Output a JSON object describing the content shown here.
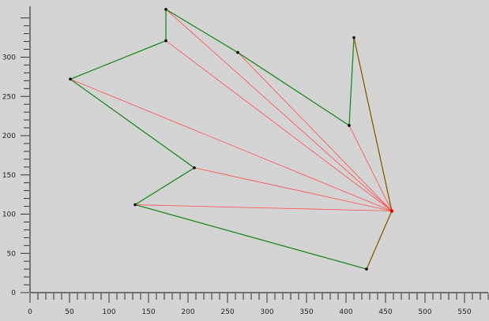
{
  "chart_data": {
    "type": "line",
    "title": "",
    "xlabel": "",
    "ylabel": "",
    "xlim": [
      0,
      580
    ],
    "ylim": [
      0,
      365
    ],
    "x_ticks": [
      0,
      50,
      100,
      150,
      200,
      250,
      300,
      350,
      400,
      450,
      500,
      550
    ],
    "y_ticks": [
      0,
      50,
      100,
      150,
      200,
      250,
      300
    ],
    "x_minor_step": 10,
    "y_minor_step": 10,
    "grid": false,
    "colors": {
      "polygon": "#1f8a1f",
      "fan": "#ff4d4d",
      "hull_right": "#8a5a00",
      "point": "#000000"
    },
    "polygon_vertices": [
      {
        "x": 172,
        "y": 361
      },
      {
        "x": 263,
        "y": 306
      },
      {
        "x": 404,
        "y": 213
      },
      {
        "x": 410,
        "y": 325
      },
      {
        "x": 458,
        "y": 104
      },
      {
        "x": 426,
        "y": 30
      },
      {
        "x": 133,
        "y": 112
      },
      {
        "x": 208,
        "y": 159
      },
      {
        "x": 51,
        "y": 272
      },
      {
        "x": 172,
        "y": 321
      }
    ],
    "green_edges": [
      [
        0,
        1
      ],
      [
        1,
        2
      ],
      [
        2,
        3
      ],
      [
        5,
        6
      ],
      [
        6,
        7
      ],
      [
        7,
        8
      ],
      [
        8,
        9
      ],
      [
        9,
        0
      ]
    ],
    "brown_edges": [
      [
        3,
        4
      ],
      [
        4,
        5
      ]
    ],
    "fan_apex": 4,
    "fan_targets": [
      0,
      1,
      2,
      6,
      7,
      8,
      9
    ]
  }
}
